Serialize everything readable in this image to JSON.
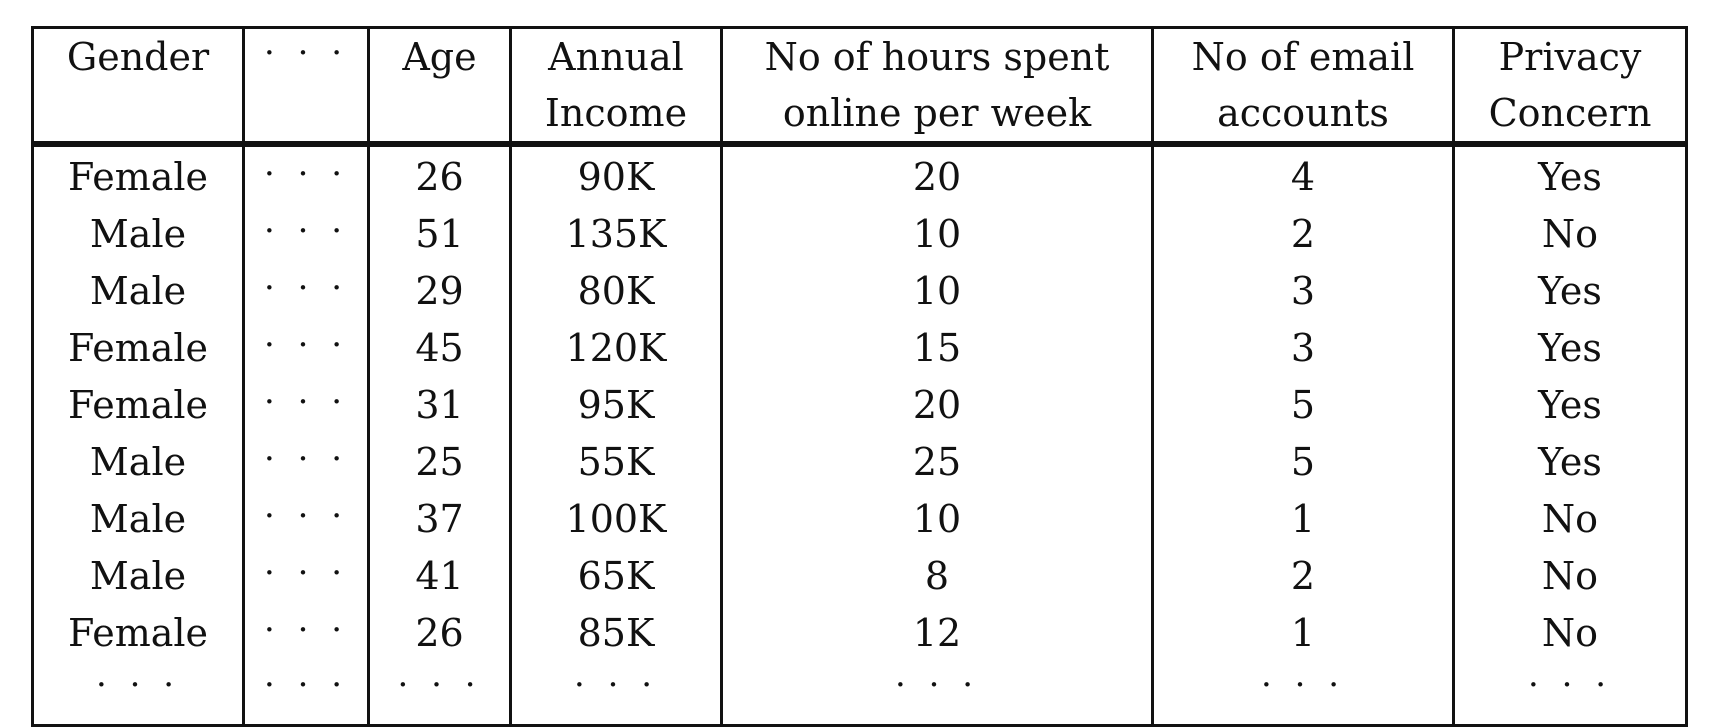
{
  "table": {
    "headers": [
      {
        "id": "gender",
        "lines": [
          "Gender"
        ]
      },
      {
        "id": "omitted",
        "lines": [
          "· · ·"
        ]
      },
      {
        "id": "age",
        "lines": [
          "Age"
        ]
      },
      {
        "id": "annual-income",
        "lines": [
          "Annual",
          "Income"
        ]
      },
      {
        "id": "hours-online",
        "lines": [
          "No of hours spent",
          "online per week"
        ]
      },
      {
        "id": "email-accounts",
        "lines": [
          "No of email",
          "accounts"
        ]
      },
      {
        "id": "privacy-concern",
        "lines": [
          "Privacy",
          "Concern"
        ]
      }
    ],
    "rows": [
      [
        "Female",
        "· · ·",
        "26",
        "90K",
        "20",
        "4",
        "Yes"
      ],
      [
        "Male",
        "· · ·",
        "51",
        "135K",
        "10",
        "2",
        "No"
      ],
      [
        "Male",
        "· · ·",
        "29",
        "80K",
        "10",
        "3",
        "Yes"
      ],
      [
        "Female",
        "· · ·",
        "45",
        "120K",
        "15",
        "3",
        "Yes"
      ],
      [
        "Female",
        "· · ·",
        "31",
        "95K",
        "20",
        "5",
        "Yes"
      ],
      [
        "Male",
        "· · ·",
        "25",
        "55K",
        "25",
        "5",
        "Yes"
      ],
      [
        "Male",
        "· · ·",
        "37",
        "100K",
        "10",
        "1",
        "No"
      ],
      [
        "Male",
        "· · ·",
        "41",
        "65K",
        "8",
        "2",
        "No"
      ],
      [
        "Female",
        "· · ·",
        "26",
        "85K",
        "12",
        "1",
        "No"
      ],
      [
        "· · ·",
        "· · ·",
        "· · ·",
        "· · ·",
        "· · ·",
        "· · ·",
        "· · ·"
      ]
    ]
  }
}
